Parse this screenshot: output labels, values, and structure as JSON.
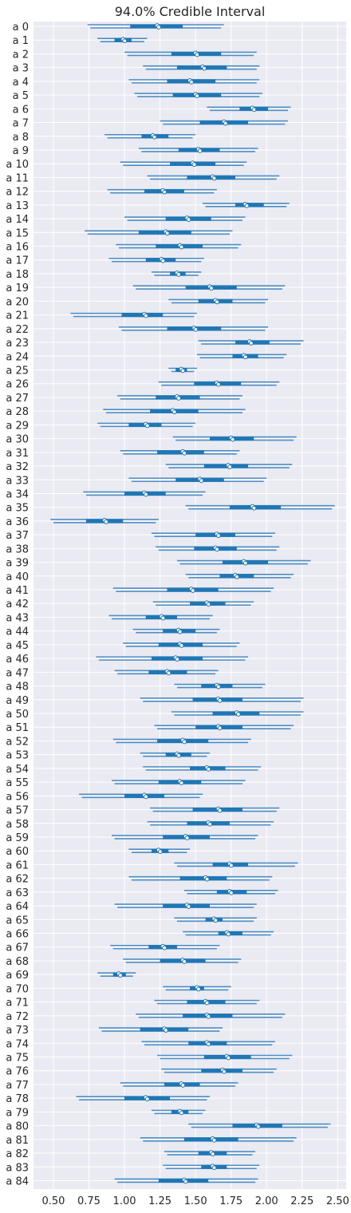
{
  "chart_data": {
    "type": "forest",
    "title": "94.0% Credible Interval",
    "xlim": [
      0.36,
      2.56
    ],
    "xticks": [
      "0.50",
      "0.75",
      "1.00",
      "1.25",
      "1.50",
      "1.75",
      "2.00",
      "2.25",
      "2.50"
    ],
    "xtick_values": [
      0.5,
      0.75,
      1.0,
      1.25,
      1.5,
      1.75,
      2.0,
      2.25,
      2.5
    ],
    "grid": true,
    "series": [
      {
        "values": [
          [
            0.74,
            1.04,
            1.23,
            1.41,
            1.7
          ],
          [
            0.81,
            0.93,
            0.99,
            1.05,
            1.16
          ],
          [
            1.0,
            1.33,
            1.5,
            1.68,
            1.93
          ],
          [
            1.13,
            1.37,
            1.55,
            1.72,
            1.95
          ],
          [
            1.03,
            1.3,
            1.46,
            1.64,
            1.95
          ],
          [
            1.07,
            1.34,
            1.5,
            1.68,
            1.97
          ],
          [
            1.58,
            1.81,
            1.9,
            2.01,
            2.17
          ],
          [
            1.25,
            1.53,
            1.7,
            1.87,
            2.15
          ],
          [
            0.86,
            1.12,
            1.2,
            1.31,
            1.5
          ],
          [
            1.1,
            1.38,
            1.52,
            1.67,
            1.94
          ],
          [
            0.97,
            1.32,
            1.48,
            1.64,
            1.86
          ],
          [
            1.16,
            1.44,
            1.62,
            1.78,
            2.09
          ],
          [
            0.88,
            1.14,
            1.27,
            1.42,
            1.65
          ],
          [
            1.55,
            1.78,
            1.85,
            1.98,
            2.16
          ],
          [
            1.0,
            1.29,
            1.44,
            1.61,
            1.85
          ],
          [
            0.72,
            1.1,
            1.29,
            1.47,
            1.76
          ],
          [
            0.94,
            1.22,
            1.39,
            1.55,
            1.82
          ],
          [
            0.89,
            1.15,
            1.26,
            1.36,
            1.56
          ],
          [
            1.19,
            1.32,
            1.37,
            1.43,
            1.54
          ],
          [
            1.06,
            1.43,
            1.6,
            1.79,
            2.13
          ],
          [
            1.31,
            1.52,
            1.64,
            1.76,
            2.01
          ],
          [
            0.62,
            0.98,
            1.14,
            1.27,
            1.51
          ],
          [
            0.96,
            1.3,
            1.49,
            1.68,
            2.01
          ],
          [
            1.52,
            1.78,
            1.88,
            2.02,
            2.26
          ],
          [
            1.51,
            1.76,
            1.84,
            1.94,
            2.14
          ],
          [
            1.31,
            1.36,
            1.4,
            1.44,
            1.51
          ],
          [
            1.24,
            1.49,
            1.65,
            1.82,
            2.09
          ],
          [
            0.95,
            1.22,
            1.37,
            1.53,
            1.83
          ],
          [
            0.85,
            1.18,
            1.34,
            1.52,
            1.85
          ],
          [
            0.81,
            1.03,
            1.15,
            1.26,
            1.5
          ],
          [
            1.34,
            1.6,
            1.75,
            1.91,
            2.21
          ],
          [
            0.97,
            1.23,
            1.41,
            1.56,
            1.81
          ],
          [
            1.29,
            1.56,
            1.73,
            1.87,
            2.18
          ],
          [
            1.03,
            1.36,
            1.53,
            1.7,
            2.0
          ],
          [
            0.71,
            1.0,
            1.14,
            1.29,
            1.57
          ],
          [
            1.43,
            1.74,
            1.9,
            2.1,
            2.48
          ],
          [
            0.48,
            0.73,
            0.86,
            0.99,
            1.24
          ],
          [
            1.19,
            1.5,
            1.65,
            1.78,
            2.06
          ],
          [
            1.22,
            1.49,
            1.64,
            1.79,
            2.09
          ],
          [
            1.37,
            1.69,
            1.84,
            2.01,
            2.31
          ],
          [
            1.43,
            1.67,
            1.78,
            1.91,
            2.19
          ],
          [
            0.92,
            1.3,
            1.47,
            1.66,
            2.05
          ],
          [
            1.2,
            1.46,
            1.58,
            1.71,
            1.91
          ],
          [
            0.89,
            1.15,
            1.26,
            1.37,
            1.62
          ],
          [
            1.06,
            1.27,
            1.38,
            1.5,
            1.67
          ],
          [
            0.99,
            1.24,
            1.39,
            1.55,
            1.81
          ],
          [
            0.8,
            1.19,
            1.36,
            1.55,
            1.87
          ],
          [
            0.93,
            1.17,
            1.3,
            1.44,
            1.66
          ],
          [
            1.35,
            1.54,
            1.65,
            1.76,
            1.99
          ],
          [
            1.11,
            1.48,
            1.66,
            1.83,
            2.26
          ],
          [
            1.33,
            1.62,
            1.79,
            1.95,
            2.26
          ],
          [
            1.21,
            1.5,
            1.66,
            1.83,
            2.19
          ],
          [
            0.92,
            1.23,
            1.41,
            1.59,
            1.89
          ],
          [
            1.11,
            1.29,
            1.37,
            1.47,
            1.6
          ],
          [
            1.13,
            1.46,
            1.58,
            1.71,
            1.96
          ],
          [
            0.91,
            1.24,
            1.39,
            1.54,
            1.85
          ],
          [
            0.68,
            1.0,
            1.14,
            1.28,
            1.55
          ],
          [
            1.18,
            1.48,
            1.66,
            1.83,
            2.09
          ],
          [
            1.16,
            1.44,
            1.59,
            1.74,
            2.05
          ],
          [
            0.91,
            1.27,
            1.43,
            1.6,
            1.94
          ],
          [
            1.03,
            1.19,
            1.24,
            1.31,
            1.46
          ],
          [
            1.35,
            1.62,
            1.74,
            1.87,
            2.22
          ],
          [
            1.03,
            1.39,
            1.57,
            1.72,
            2.04
          ],
          [
            1.42,
            1.65,
            1.74,
            1.86,
            2.08
          ],
          [
            0.93,
            1.27,
            1.44,
            1.6,
            1.93
          ],
          [
            1.35,
            1.57,
            1.63,
            1.69,
            1.93
          ],
          [
            1.41,
            1.66,
            1.72,
            1.83,
            2.05
          ],
          [
            0.9,
            1.17,
            1.27,
            1.37,
            1.67
          ],
          [
            0.99,
            1.25,
            1.41,
            1.57,
            1.82
          ],
          [
            0.81,
            0.92,
            0.96,
            1.01,
            1.08
          ],
          [
            1.27,
            1.46,
            1.51,
            1.56,
            1.75
          ],
          [
            1.21,
            1.44,
            1.57,
            1.71,
            1.95
          ],
          [
            1.08,
            1.41,
            1.58,
            1.76,
            2.13
          ],
          [
            0.82,
            1.11,
            1.28,
            1.45,
            1.69
          ],
          [
            1.12,
            1.45,
            1.58,
            1.72,
            2.06
          ],
          [
            1.23,
            1.56,
            1.72,
            1.89,
            2.18
          ],
          [
            1.26,
            1.54,
            1.69,
            1.83,
            2.07
          ],
          [
            0.97,
            1.28,
            1.4,
            1.53,
            1.8
          ],
          [
            0.66,
            1.0,
            1.15,
            1.32,
            1.6
          ],
          [
            1.19,
            1.33,
            1.39,
            1.45,
            1.57
          ],
          [
            1.45,
            1.76,
            1.93,
            2.11,
            2.45
          ],
          [
            1.11,
            1.42,
            1.62,
            1.8,
            2.21
          ],
          [
            1.28,
            1.52,
            1.61,
            1.72,
            1.92
          ],
          [
            1.27,
            1.54,
            1.62,
            1.72,
            1.95
          ],
          [
            0.93,
            1.24,
            1.42,
            1.59,
            1.94
          ]
        ]
      }
    ]
  }
}
